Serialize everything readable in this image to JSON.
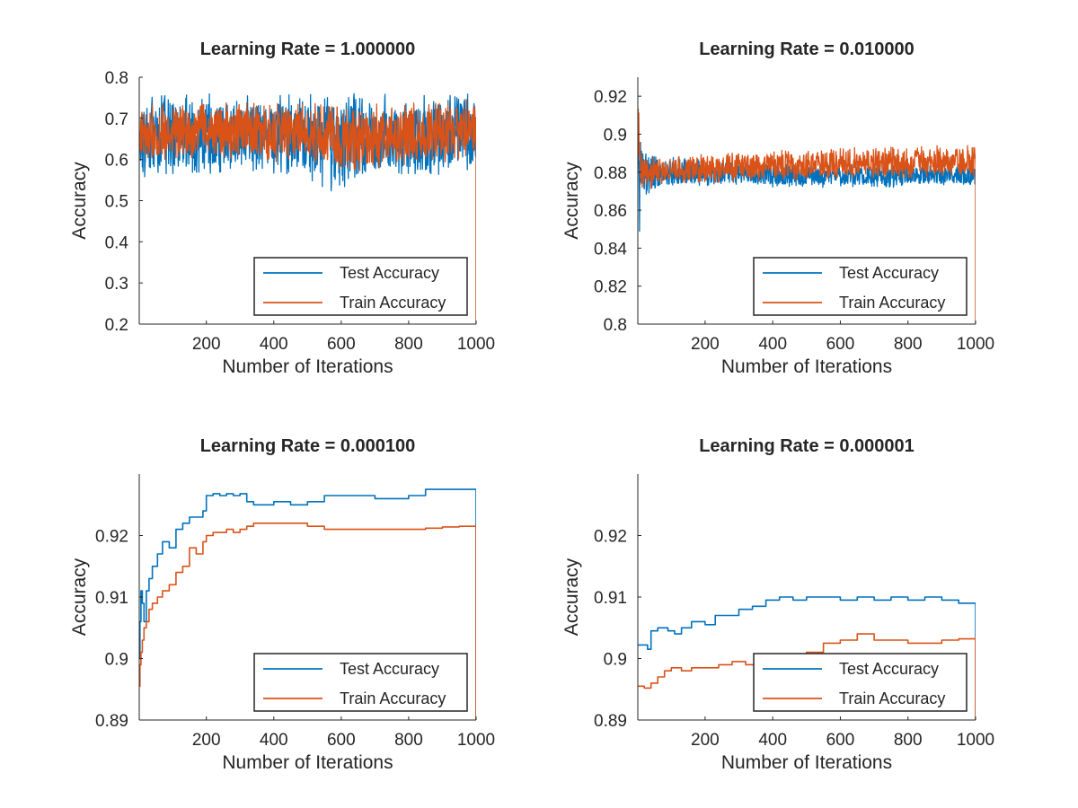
{
  "chart_data": [
    {
      "type": "line",
      "title": "Learning Rate = 1.000000",
      "xlabel": "Number of Iterations",
      "ylabel": "Accuracy",
      "xlim": [
        1,
        1000
      ],
      "ylim": [
        0.2,
        0.8
      ],
      "xticks": [
        200,
        400,
        600,
        800,
        1000
      ],
      "yticks": [
        0.2,
        0.3,
        0.4,
        0.5,
        0.6,
        0.7,
        0.8
      ],
      "ytick_labels": [
        "0.2",
        "0.3",
        "0.4",
        "0.5",
        "0.6",
        "0.7",
        "0.8"
      ],
      "legend": "bottom-right",
      "grid": false,
      "series": [
        {
          "name": "Test Accuracy",
          "color": "#0072BD",
          "band": {
            "x": [
              1,
              5,
              20,
              100,
              300,
              500,
              580,
              700,
              850,
              1000
            ],
            "lo": [
              0.64,
              0.58,
              0.55,
              0.56,
              0.57,
              0.55,
              0.52,
              0.55,
              0.56,
              0.57
            ],
            "hi": [
              0.66,
              0.72,
              0.75,
              0.76,
              0.76,
              0.76,
              0.76,
              0.76,
              0.76,
              0.77
            ]
          }
        },
        {
          "name": "Train Accuracy",
          "color": "#D95319",
          "band": {
            "x": [
              1,
              5,
              20,
              100,
              300,
              500,
              580,
              700,
              850,
              1000
            ],
            "lo": [
              0.65,
              0.6,
              0.59,
              0.6,
              0.6,
              0.59,
              0.57,
              0.57,
              0.59,
              0.6
            ],
            "hi": [
              0.66,
              0.71,
              0.73,
              0.74,
              0.74,
              0.74,
              0.74,
              0.74,
              0.74,
              0.75
            ]
          }
        }
      ]
    },
    {
      "type": "line",
      "title": "Learning Rate = 0.010000",
      "xlabel": "Number of Iterations",
      "ylabel": "Accuracy",
      "xlim": [
        1,
        1000
      ],
      "ylim": [
        0.8,
        0.93
      ],
      "xticks": [
        200,
        400,
        600,
        800,
        1000
      ],
      "yticks": [
        0.8,
        0.82,
        0.84,
        0.86,
        0.88,
        0.9,
        0.92
      ],
      "ytick_labels": [
        "0.8",
        "0.82",
        "0.84",
        "0.86",
        "0.88",
        "0.9",
        "0.92"
      ],
      "legend": "bottom-right",
      "grid": false,
      "series": [
        {
          "name": "Test Accuracy",
          "color": "#0072BD",
          "band": {
            "x": [
              1,
              3,
              6,
              10,
              20,
              50,
              100,
              200,
              300,
              400,
              500,
              600,
              700,
              800,
              900,
              1000
            ],
            "lo": [
              0.905,
              0.86,
              0.84,
              0.862,
              0.866,
              0.87,
              0.872,
              0.873,
              0.873,
              0.872,
              0.872,
              0.872,
              0.872,
              0.872,
              0.873,
              0.873
            ],
            "hi": [
              0.926,
              0.921,
              0.91,
              0.9,
              0.893,
              0.889,
              0.888,
              0.887,
              0.886,
              0.885,
              0.884,
              0.884,
              0.884,
              0.884,
              0.884,
              0.883
            ]
          }
        },
        {
          "name": "Train Accuracy",
          "color": "#D95319",
          "band": {
            "x": [
              1,
              3,
              6,
              10,
              20,
              50,
              100,
              200,
              300,
              400,
              500,
              600,
              700,
              800,
              900,
              1000
            ],
            "lo": [
              0.9,
              0.88,
              0.869,
              0.868,
              0.87,
              0.872,
              0.874,
              0.874,
              0.875,
              0.876,
              0.876,
              0.877,
              0.877,
              0.877,
              0.878,
              0.878
            ],
            "hi": [
              0.92,
              0.915,
              0.905,
              0.896,
              0.891,
              0.889,
              0.889,
              0.89,
              0.891,
              0.892,
              0.892,
              0.893,
              0.893,
              0.894,
              0.894,
              0.894
            ]
          }
        }
      ]
    },
    {
      "type": "line",
      "title": "Learning Rate = 0.000100",
      "xlabel": "Number of Iterations",
      "ylabel": "Accuracy",
      "xlim": [
        1,
        1000
      ],
      "ylim": [
        0.89,
        0.93
      ],
      "xticks": [
        200,
        400,
        600,
        800,
        1000
      ],
      "yticks": [
        0.89,
        0.9,
        0.91,
        0.92
      ],
      "ytick_labels": [
        "0.89",
        "0.9",
        "0.91",
        "0.92"
      ],
      "legend": "bottom-right",
      "grid": false,
      "series": [
        {
          "name": "Test Accuracy",
          "color": "#0072BD",
          "x": [
            1,
            3,
            6,
            10,
            15,
            22,
            30,
            40,
            55,
            70,
            90,
            110,
            130,
            150,
            170,
            190,
            200,
            220,
            240,
            260,
            280,
            300,
            320,
            340,
            360,
            400,
            450,
            500,
            550,
            600,
            650,
            700,
            750,
            800,
            850,
            900,
            950,
            1000
          ],
          "y": [
            0.9,
            0.906,
            0.911,
            0.909,
            0.906,
            0.911,
            0.913,
            0.915,
            0.917,
            0.919,
            0.918,
            0.921,
            0.922,
            0.923,
            0.923,
            0.924,
            0.9265,
            0.9268,
            0.9265,
            0.9268,
            0.9265,
            0.9268,
            0.9255,
            0.925,
            0.925,
            0.9255,
            0.925,
            0.9255,
            0.9265,
            0.9265,
            0.9265,
            0.926,
            0.926,
            0.9265,
            0.9275,
            0.9275,
            0.9275,
            0.9275
          ]
        },
        {
          "name": "Train Accuracy",
          "color": "#D95319",
          "x": [
            1,
            3,
            6,
            10,
            15,
            22,
            30,
            40,
            55,
            70,
            90,
            110,
            130,
            150,
            170,
            190,
            200,
            220,
            240,
            260,
            280,
            300,
            320,
            340,
            360,
            400,
            450,
            500,
            550,
            600,
            650,
            700,
            750,
            800,
            850,
            900,
            950,
            1000
          ],
          "y": [
            0.8955,
            0.899,
            0.901,
            0.903,
            0.905,
            0.906,
            0.908,
            0.909,
            0.91,
            0.911,
            0.912,
            0.914,
            0.915,
            0.918,
            0.917,
            0.919,
            0.92,
            0.9205,
            0.9205,
            0.921,
            0.9205,
            0.921,
            0.9215,
            0.922,
            0.922,
            0.922,
            0.922,
            0.9215,
            0.921,
            0.921,
            0.921,
            0.921,
            0.921,
            0.921,
            0.9212,
            0.9214,
            0.9215,
            0.9215
          ]
        }
      ]
    },
    {
      "type": "line",
      "title": "Learning Rate = 0.000001",
      "xlabel": "Number of Iterations",
      "ylabel": "Accuracy",
      "xlim": [
        1,
        1000
      ],
      "ylim": [
        0.89,
        0.93
      ],
      "xticks": [
        200,
        400,
        600,
        800,
        1000
      ],
      "yticks": [
        0.89,
        0.9,
        0.91,
        0.92
      ],
      "ytick_labels": [
        "0.89",
        "0.9",
        "0.91",
        "0.92"
      ],
      "legend": "bottom-right",
      "grid": false,
      "series": [
        {
          "name": "Test Accuracy",
          "color": "#0072BD",
          "x": [
            1,
            30,
            40,
            60,
            90,
            110,
            130,
            160,
            200,
            230,
            260,
            300,
            340,
            380,
            420,
            460,
            500,
            550,
            600,
            650,
            700,
            750,
            800,
            850,
            900,
            950,
            1000
          ],
          "y": [
            0.9022,
            0.9015,
            0.9045,
            0.905,
            0.9045,
            0.904,
            0.905,
            0.906,
            0.9055,
            0.907,
            0.907,
            0.908,
            0.9085,
            0.9095,
            0.91,
            0.9095,
            0.91,
            0.91,
            0.9095,
            0.91,
            0.9095,
            0.91,
            0.9095,
            0.91,
            0.9095,
            0.909,
            0.9085
          ]
        },
        {
          "name": "Train Accuracy",
          "color": "#D95319",
          "x": [
            1,
            20,
            40,
            60,
            80,
            100,
            130,
            160,
            200,
            240,
            280,
            320,
            360,
            400,
            450,
            500,
            550,
            600,
            650,
            700,
            750,
            800,
            850,
            900,
            950,
            1000
          ],
          "y": [
            0.8955,
            0.8952,
            0.896,
            0.897,
            0.898,
            0.8985,
            0.898,
            0.8985,
            0.8985,
            0.899,
            0.8995,
            0.899,
            0.8995,
            0.9,
            0.9005,
            0.901,
            0.9025,
            0.903,
            0.904,
            0.903,
            0.903,
            0.9025,
            0.9025,
            0.903,
            0.9032,
            0.9035
          ]
        }
      ]
    }
  ]
}
